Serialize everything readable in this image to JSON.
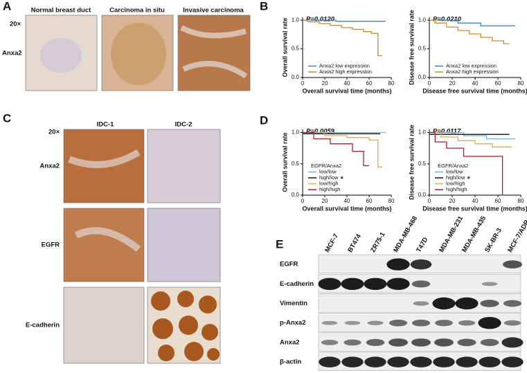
{
  "panels": {
    "A": {
      "label": "A",
      "columns": [
        "Normal breast duct",
        "Carcinoma in situ",
        "Invasive carcinoma"
      ],
      "magnification": "20×",
      "row_label": "Anxa2"
    },
    "B": {
      "label": "B"
    },
    "C": {
      "label": "C",
      "columns": [
        "IDC-1",
        "IDC-2"
      ],
      "magnification": "20×",
      "row_labels": [
        "Anxa2",
        "EGFR",
        "E-cadherin"
      ]
    },
    "D": {
      "label": "D"
    },
    "E": {
      "label": "E",
      "cell_lines": [
        "MCF-7",
        "BT474",
        "ZR75-1",
        "MDA-MB-468",
        "T47D",
        "MDA-MB-231",
        "MDA-MB-435",
        "SK-BR-3",
        "MCF-7/ADR"
      ],
      "proteins": [
        "EGFR",
        "E-cadherin",
        "Vimentin",
        "p-Anxa2",
        "Anxa2",
        "β-actin"
      ]
    }
  },
  "chart_data": [
    {
      "type": "step",
      "annotation": "P=0.0120",
      "xlabel": "Overall survival time (months)",
      "ylabel": "Overall survival rate",
      "xlim": [
        0,
        80
      ],
      "ylim": [
        0,
        1.05
      ],
      "xticks": [
        0,
        20,
        40,
        60,
        80
      ],
      "yticks": [
        {
          "value": 0,
          "label": "0.0"
        },
        {
          "value": 0.5,
          "label": "0.5"
        },
        {
          "value": 1,
          "label": "1.0"
        }
      ],
      "legend_position": "lower left",
      "series": [
        {
          "name": "Anxa2 low expression",
          "color": "#3a86b8",
          "x": [
            0,
            30,
            30,
            75
          ],
          "values": [
            1,
            1,
            0.98,
            0.98
          ]
        },
        {
          "name": "Anxa2 high expression",
          "color": "#d08a24",
          "x": [
            0,
            5,
            5,
            15,
            15,
            25,
            25,
            35,
            35,
            45,
            45,
            55,
            55,
            62,
            62,
            68,
            68,
            72
          ],
          "values": [
            1,
            1,
            0.97,
            0.97,
            0.94,
            0.94,
            0.91,
            0.91,
            0.87,
            0.87,
            0.84,
            0.84,
            0.8,
            0.8,
            0.77,
            0.77,
            0.38,
            0.38
          ]
        }
      ]
    },
    {
      "type": "step",
      "annotation": "P=0.0210",
      "xlabel": "Disease free survival time (months)",
      "ylabel": "Disease free survival rate",
      "xlim": [
        0,
        80
      ],
      "ylim": [
        0,
        1.05
      ],
      "xticks": [
        0,
        20,
        40,
        60,
        80
      ],
      "yticks": [
        {
          "value": 0,
          "label": "0.0"
        },
        {
          "value": 0.5,
          "label": "0.5"
        },
        {
          "value": 1,
          "label": "1.0"
        }
      ],
      "legend_position": "lower left",
      "series": [
        {
          "name": "Anxa2 low expression",
          "color": "#3a86b8",
          "x": [
            0,
            25,
            25,
            45,
            45,
            75
          ],
          "values": [
            1,
            1,
            0.95,
            0.95,
            0.9,
            0.9
          ]
        },
        {
          "name": "Anxa2 high expression",
          "color": "#d08a24",
          "x": [
            0,
            5,
            5,
            15,
            15,
            25,
            25,
            35,
            35,
            45,
            45,
            55,
            55,
            65,
            65,
            70
          ],
          "values": [
            1,
            1,
            0.95,
            0.95,
            0.88,
            0.88,
            0.82,
            0.82,
            0.76,
            0.76,
            0.7,
            0.7,
            0.64,
            0.64,
            0.59,
            0.59
          ]
        }
      ]
    },
    {
      "type": "step",
      "annotation": "P=0.0059",
      "xlabel": "Overall survival time (months)",
      "ylabel": "Overall survival rate",
      "xlim": [
        0,
        80
      ],
      "ylim": [
        0,
        1.05
      ],
      "xticks": [
        0,
        20,
        40,
        60,
        80
      ],
      "yticks": [
        {
          "value": 0,
          "label": "0.0"
        },
        {
          "value": 0.5,
          "label": "0.5"
        },
        {
          "value": 1,
          "label": "1.0"
        }
      ],
      "legend_position": "lower left",
      "legend_title": "EGFR/Anxa2",
      "series": [
        {
          "name": "low/low",
          "color": "#6fb1e0",
          "x": [
            0,
            75
          ],
          "values": [
            1,
            1
          ]
        },
        {
          "name": "high/low ∗",
          "color": "#111111",
          "x": [
            0,
            70
          ],
          "values": [
            0.98,
            0.98
          ]
        },
        {
          "name": "low/high",
          "color": "#d4ad5a",
          "x": [
            0,
            20,
            20,
            40,
            40,
            60,
            60,
            68,
            68,
            72
          ],
          "values": [
            1,
            1,
            0.95,
            0.95,
            0.92,
            0.92,
            0.88,
            0.88,
            0.45,
            0.45
          ]
        },
        {
          "name": "high/high",
          "color": "#b0182a",
          "x": [
            0,
            10,
            10,
            25,
            25,
            45,
            45,
            55,
            55,
            60
          ],
          "values": [
            1,
            1,
            0.9,
            0.9,
            0.82,
            0.82,
            0.7,
            0.7,
            0.47,
            0.47
          ]
        }
      ]
    },
    {
      "type": "step",
      "annotation": "P=0.0117",
      "xlabel": "Disease free survival time (months)",
      "ylabel": "Disease free survival rate",
      "xlim": [
        0,
        80
      ],
      "ylim": [
        0,
        1.05
      ],
      "xticks": [
        0,
        20,
        40,
        60,
        80
      ],
      "yticks": [
        {
          "value": 0,
          "label": "0.0"
        },
        {
          "value": 0.5,
          "label": "0.5"
        },
        {
          "value": 1,
          "label": "1.0"
        }
      ],
      "legend_position": "lower left",
      "legend_title": "EGFR/Anxa2",
      "series": [
        {
          "name": "low/low",
          "color": "#6fb1e0",
          "x": [
            0,
            30,
            30,
            50,
            50,
            75
          ],
          "values": [
            1,
            1,
            0.95,
            0.95,
            0.9,
            0.9
          ]
        },
        {
          "name": "high/low ∗",
          "color": "#111111",
          "x": [
            0,
            70
          ],
          "values": [
            0.97,
            0.97
          ]
        },
        {
          "name": "low/high",
          "color": "#d4ad5a",
          "x": [
            0,
            10,
            10,
            25,
            25,
            40,
            40,
            55,
            55,
            72
          ],
          "values": [
            1,
            1,
            0.93,
            0.93,
            0.87,
            0.87,
            0.82,
            0.82,
            0.77,
            0.77
          ]
        },
        {
          "name": "high/high",
          "color": "#b0182a",
          "x": [
            0,
            5,
            5,
            15,
            15,
            30,
            30,
            64,
            64
          ],
          "values": [
            1,
            1,
            0.85,
            0.85,
            0.75,
            0.75,
            0.62,
            0.62,
            0
          ]
        }
      ]
    }
  ]
}
